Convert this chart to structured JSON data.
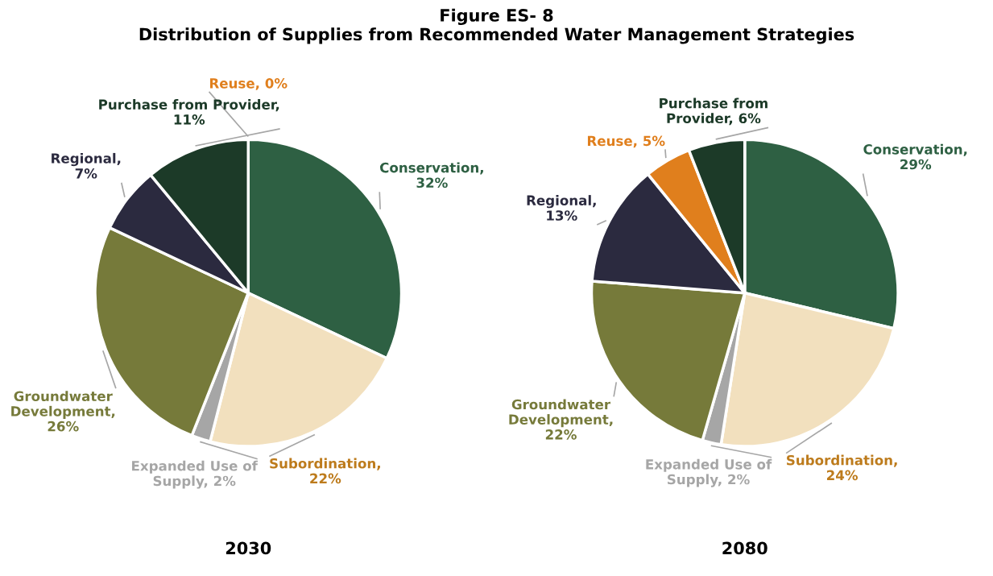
{
  "chart_data": [
    {
      "type": "pie",
      "title": "Figure ES- 8",
      "subtitle": "Distribution of Supplies from Recommended Water Management Strategies",
      "xlabel": "2030",
      "legend": false,
      "categories": [
        "Conservation,\n32%",
        "Subordination,\n22%",
        "Expanded Use of\nSupply, 2%",
        "Groundwater\nDevelopment,\n26%",
        "Regional,\n7%",
        "Purchase from Provider,\n11%",
        "Reuse, 0%"
      ],
      "values": [
        32,
        22,
        2,
        26,
        7,
        11,
        0
      ],
      "colors": [
        "#2e6043",
        "#f2e0be",
        "#a6a6a6",
        "#767a3a",
        "#2b2a3f",
        "#1c3a28",
        "#e07f1d"
      ]
    },
    {
      "type": "pie",
      "xlabel": "2080",
      "legend": false,
      "categories": [
        "Conservation,\n29%",
        "Subordination,\n24%",
        "Expanded Use of\nSupply, 2%",
        "Groundwater\nDevelopment,\n22%",
        "Regional,\n13%",
        "Reuse, 5%",
        "Purchase from\nProvider, 6%"
      ],
      "values": [
        29,
        24,
        2,
        22,
        13,
        5,
        6
      ],
      "colors": [
        "#2e6043",
        "#f2e0be",
        "#a6a6a6",
        "#767a3a",
        "#2b2a3f",
        "#e07f1d",
        "#1c3a28"
      ]
    }
  ]
}
